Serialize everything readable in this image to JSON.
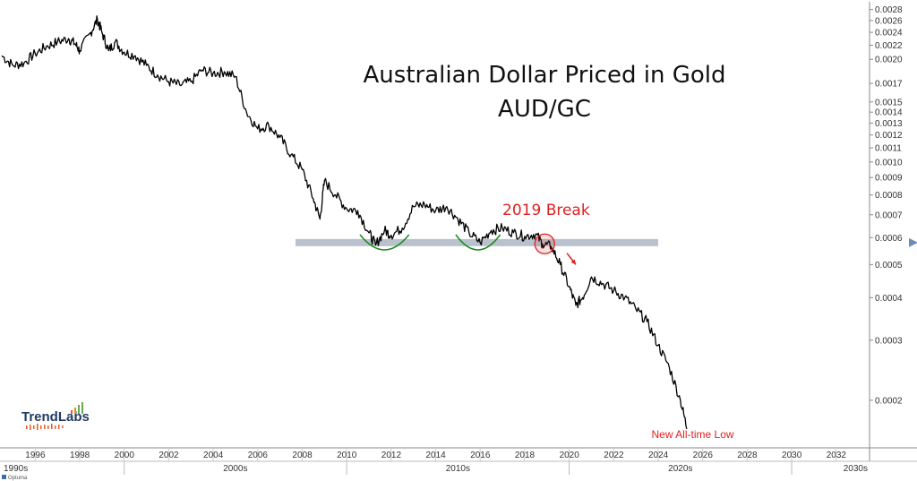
{
  "chart_data": {
    "type": "line",
    "title": "Australian Dollar Priced in Gold",
    "subtitle": "AUD/GC",
    "xlabel": "",
    "ylabel": "",
    "yscale": "log",
    "ylim": [
      0.000145,
      0.00295
    ],
    "xlim": [
      1994.5,
      2033.5
    ],
    "grid": false,
    "y_ticks": [
      0.0002,
      0.0003,
      0.0004,
      0.0005,
      0.0006,
      0.0007,
      0.0008,
      0.0009,
      0.001,
      0.0011,
      0.0012,
      0.0013,
      0.0014,
      0.0015,
      0.0017,
      0.002,
      0.0022,
      0.0024,
      0.0026,
      0.0028
    ],
    "y_tick_labels": [
      "0.0002",
      "0.0003",
      "0.0004",
      "0.0005",
      "0.0006",
      "0.0007",
      "0.0008",
      "0.0009",
      "0.0010",
      "0.0011",
      "0.0012",
      "0.0013",
      "0.0014",
      "0.0015",
      "0.0017",
      "0.0020",
      "0.0022",
      "0.0024",
      "0.0026",
      "0.0028"
    ],
    "x_year_ticks": [
      1996,
      1998,
      2000,
      2002,
      2004,
      2006,
      2008,
      2010,
      2012,
      2014,
      2016,
      2018,
      2020,
      2022,
      2024,
      2026,
      2028,
      2030,
      2032
    ],
    "x_year_labels": [
      "1996",
      "1998",
      "2000",
      "2002",
      "2004",
      "2006",
      "2008",
      "2010",
      "2012",
      "2014",
      "2016",
      "2018",
      "2020",
      "2022",
      "2024",
      "2026",
      "2028",
      "2030",
      "2032"
    ],
    "decades": [
      {
        "label": "1990s",
        "start": 1994.5,
        "end": 2000
      },
      {
        "label": "2000s",
        "start": 2000,
        "end": 2010
      },
      {
        "label": "2010s",
        "start": 2010,
        "end": 2020
      },
      {
        "label": "2020s",
        "start": 2020,
        "end": 2030
      },
      {
        "label": "2030s",
        "start": 2030,
        "end": 2033.5
      }
    ],
    "current_value_marker": 0.00058,
    "series": [
      {
        "name": "",
        "color": "#000000",
        "points": [
          [
            1994.5,
            0.00205
          ],
          [
            1995.0,
            0.00192
          ],
          [
            1995.5,
            0.00195
          ],
          [
            1996.0,
            0.00208
          ],
          [
            1996.5,
            0.00218
          ],
          [
            1997.0,
            0.00225
          ],
          [
            1997.5,
            0.0023
          ],
          [
            1997.8,
            0.00222
          ],
          [
            1998.0,
            0.00212
          ],
          [
            1998.5,
            0.0024
          ],
          [
            1998.8,
            0.00262
          ],
          [
            1999.0,
            0.0024
          ],
          [
            1999.3,
            0.00212
          ],
          [
            1999.6,
            0.00225
          ],
          [
            2000.0,
            0.0021
          ],
          [
            2000.5,
            0.00205
          ],
          [
            2001.0,
            0.00192
          ],
          [
            2001.5,
            0.0018
          ],
          [
            2002.0,
            0.00172
          ],
          [
            2002.5,
            0.00168
          ],
          [
            2003.0,
            0.00172
          ],
          [
            2003.5,
            0.00186
          ],
          [
            2004.0,
            0.00182
          ],
          [
            2004.5,
            0.00184
          ],
          [
            2005.0,
            0.00178
          ],
          [
            2005.5,
            0.0014
          ],
          [
            2006.0,
            0.00125
          ],
          [
            2006.5,
            0.00128
          ],
          [
            2007.0,
            0.00118
          ],
          [
            2007.5,
            0.00105
          ],
          [
            2008.0,
            0.00095
          ],
          [
            2008.5,
            0.00078
          ],
          [
            2008.8,
            0.00068
          ],
          [
            2009.0,
            0.00088
          ],
          [
            2009.5,
            0.0008
          ],
          [
            2010.0,
            0.00073
          ],
          [
            2010.5,
            0.00072
          ],
          [
            2011.0,
            0.00062
          ],
          [
            2011.3,
            0.00057
          ],
          [
            2011.7,
            0.00063
          ],
          [
            2012.0,
            0.00061
          ],
          [
            2012.5,
            0.00064
          ],
          [
            2013.0,
            0.00074
          ],
          [
            2013.5,
            0.00075
          ],
          [
            2014.0,
            0.00072
          ],
          [
            2014.5,
            0.00074
          ],
          [
            2015.0,
            0.00068
          ],
          [
            2015.5,
            0.00062
          ],
          [
            2016.0,
            0.00058
          ],
          [
            2016.5,
            0.00063
          ],
          [
            2017.0,
            0.00064
          ],
          [
            2017.5,
            0.00062
          ],
          [
            2018.0,
            0.000605
          ],
          [
            2018.5,
            0.000615
          ],
          [
            2018.8,
            0.000575
          ],
          [
            2019.2,
            0.000565
          ],
          [
            2019.6,
            0.0005
          ],
          [
            2020.0,
            0.00043
          ],
          [
            2020.3,
            0.00038
          ],
          [
            2020.6,
            0.0004
          ],
          [
            2021.0,
            0.00046
          ],
          [
            2021.5,
            0.00044
          ],
          [
            2022.0,
            0.00042
          ],
          [
            2022.5,
            0.0004
          ],
          [
            2023.0,
            0.00037
          ],
          [
            2023.5,
            0.00034
          ],
          [
            2024.0,
            0.00029
          ],
          [
            2024.5,
            0.00025
          ],
          [
            2025.0,
            0.0002
          ],
          [
            2025.3,
            0.000165
          ]
        ]
      }
    ],
    "support_band": {
      "value": 0.00058,
      "x_start": 2007.7,
      "x_end": 2024.0,
      "color": "#b9c2cc"
    },
    "break_circle": {
      "x": 2018.9,
      "y": 0.000575,
      "color": "#e02020"
    },
    "arcs": [
      {
        "x_start": 2010.6,
        "x_end": 2012.8,
        "y": 0.00059,
        "color": "#1a8a1a"
      },
      {
        "x_start": 2014.9,
        "x_end": 2016.9,
        "y": 0.00059,
        "color": "#1a8a1a"
      }
    ],
    "arrow": {
      "x1": 2019.9,
      "y1": 0.00054,
      "x2": 2020.3,
      "y2": 0.0005,
      "color": "#e02020"
    },
    "annotations": [
      {
        "text": "2019 Break",
        "x": 2017.0,
        "y": 0.0007
      },
      {
        "text": "New All-time Low",
        "x": 2023.7,
        "y": 0.000155
      }
    ]
  },
  "brand": {
    "name": "TrendLabs"
  },
  "footer": {
    "text": "Optuma"
  }
}
